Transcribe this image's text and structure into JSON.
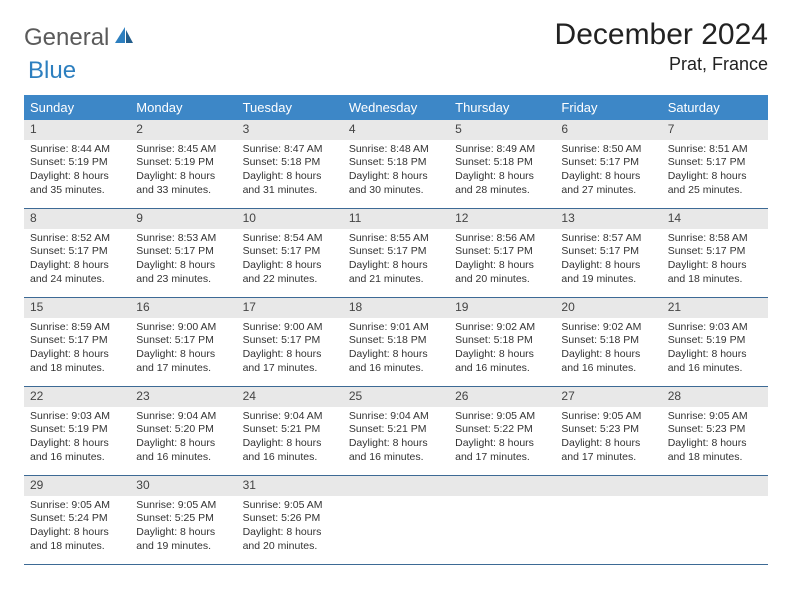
{
  "logo": {
    "text1": "General",
    "text2": "Blue"
  },
  "title": "December 2024",
  "location": "Prat, France",
  "colors": {
    "header_bg": "#3d87c7",
    "header_text": "#ffffff",
    "daynum_bg": "#e8e8e8",
    "row_border": "#3d6a95",
    "logo_gray": "#5a5a5a",
    "logo_blue": "#2d7fbf"
  },
  "weekdays": [
    "Sunday",
    "Monday",
    "Tuesday",
    "Wednesday",
    "Thursday",
    "Friday",
    "Saturday"
  ],
  "weeks": [
    [
      {
        "n": "1",
        "sunrise": "Sunrise: 8:44 AM",
        "sunset": "Sunset: 5:19 PM",
        "d1": "Daylight: 8 hours",
        "d2": "and 35 minutes."
      },
      {
        "n": "2",
        "sunrise": "Sunrise: 8:45 AM",
        "sunset": "Sunset: 5:19 PM",
        "d1": "Daylight: 8 hours",
        "d2": "and 33 minutes."
      },
      {
        "n": "3",
        "sunrise": "Sunrise: 8:47 AM",
        "sunset": "Sunset: 5:18 PM",
        "d1": "Daylight: 8 hours",
        "d2": "and 31 minutes."
      },
      {
        "n": "4",
        "sunrise": "Sunrise: 8:48 AM",
        "sunset": "Sunset: 5:18 PM",
        "d1": "Daylight: 8 hours",
        "d2": "and 30 minutes."
      },
      {
        "n": "5",
        "sunrise": "Sunrise: 8:49 AM",
        "sunset": "Sunset: 5:18 PM",
        "d1": "Daylight: 8 hours",
        "d2": "and 28 minutes."
      },
      {
        "n": "6",
        "sunrise": "Sunrise: 8:50 AM",
        "sunset": "Sunset: 5:17 PM",
        "d1": "Daylight: 8 hours",
        "d2": "and 27 minutes."
      },
      {
        "n": "7",
        "sunrise": "Sunrise: 8:51 AM",
        "sunset": "Sunset: 5:17 PM",
        "d1": "Daylight: 8 hours",
        "d2": "and 25 minutes."
      }
    ],
    [
      {
        "n": "8",
        "sunrise": "Sunrise: 8:52 AM",
        "sunset": "Sunset: 5:17 PM",
        "d1": "Daylight: 8 hours",
        "d2": "and 24 minutes."
      },
      {
        "n": "9",
        "sunrise": "Sunrise: 8:53 AM",
        "sunset": "Sunset: 5:17 PM",
        "d1": "Daylight: 8 hours",
        "d2": "and 23 minutes."
      },
      {
        "n": "10",
        "sunrise": "Sunrise: 8:54 AM",
        "sunset": "Sunset: 5:17 PM",
        "d1": "Daylight: 8 hours",
        "d2": "and 22 minutes."
      },
      {
        "n": "11",
        "sunrise": "Sunrise: 8:55 AM",
        "sunset": "Sunset: 5:17 PM",
        "d1": "Daylight: 8 hours",
        "d2": "and 21 minutes."
      },
      {
        "n": "12",
        "sunrise": "Sunrise: 8:56 AM",
        "sunset": "Sunset: 5:17 PM",
        "d1": "Daylight: 8 hours",
        "d2": "and 20 minutes."
      },
      {
        "n": "13",
        "sunrise": "Sunrise: 8:57 AM",
        "sunset": "Sunset: 5:17 PM",
        "d1": "Daylight: 8 hours",
        "d2": "and 19 minutes."
      },
      {
        "n": "14",
        "sunrise": "Sunrise: 8:58 AM",
        "sunset": "Sunset: 5:17 PM",
        "d1": "Daylight: 8 hours",
        "d2": "and 18 minutes."
      }
    ],
    [
      {
        "n": "15",
        "sunrise": "Sunrise: 8:59 AM",
        "sunset": "Sunset: 5:17 PM",
        "d1": "Daylight: 8 hours",
        "d2": "and 18 minutes."
      },
      {
        "n": "16",
        "sunrise": "Sunrise: 9:00 AM",
        "sunset": "Sunset: 5:17 PM",
        "d1": "Daylight: 8 hours",
        "d2": "and 17 minutes."
      },
      {
        "n": "17",
        "sunrise": "Sunrise: 9:00 AM",
        "sunset": "Sunset: 5:17 PM",
        "d1": "Daylight: 8 hours",
        "d2": "and 17 minutes."
      },
      {
        "n": "18",
        "sunrise": "Sunrise: 9:01 AM",
        "sunset": "Sunset: 5:18 PM",
        "d1": "Daylight: 8 hours",
        "d2": "and 16 minutes."
      },
      {
        "n": "19",
        "sunrise": "Sunrise: 9:02 AM",
        "sunset": "Sunset: 5:18 PM",
        "d1": "Daylight: 8 hours",
        "d2": "and 16 minutes."
      },
      {
        "n": "20",
        "sunrise": "Sunrise: 9:02 AM",
        "sunset": "Sunset: 5:18 PM",
        "d1": "Daylight: 8 hours",
        "d2": "and 16 minutes."
      },
      {
        "n": "21",
        "sunrise": "Sunrise: 9:03 AM",
        "sunset": "Sunset: 5:19 PM",
        "d1": "Daylight: 8 hours",
        "d2": "and 16 minutes."
      }
    ],
    [
      {
        "n": "22",
        "sunrise": "Sunrise: 9:03 AM",
        "sunset": "Sunset: 5:19 PM",
        "d1": "Daylight: 8 hours",
        "d2": "and 16 minutes."
      },
      {
        "n": "23",
        "sunrise": "Sunrise: 9:04 AM",
        "sunset": "Sunset: 5:20 PM",
        "d1": "Daylight: 8 hours",
        "d2": "and 16 minutes."
      },
      {
        "n": "24",
        "sunrise": "Sunrise: 9:04 AM",
        "sunset": "Sunset: 5:21 PM",
        "d1": "Daylight: 8 hours",
        "d2": "and 16 minutes."
      },
      {
        "n": "25",
        "sunrise": "Sunrise: 9:04 AM",
        "sunset": "Sunset: 5:21 PM",
        "d1": "Daylight: 8 hours",
        "d2": "and 16 minutes."
      },
      {
        "n": "26",
        "sunrise": "Sunrise: 9:05 AM",
        "sunset": "Sunset: 5:22 PM",
        "d1": "Daylight: 8 hours",
        "d2": "and 17 minutes."
      },
      {
        "n": "27",
        "sunrise": "Sunrise: 9:05 AM",
        "sunset": "Sunset: 5:23 PM",
        "d1": "Daylight: 8 hours",
        "d2": "and 17 minutes."
      },
      {
        "n": "28",
        "sunrise": "Sunrise: 9:05 AM",
        "sunset": "Sunset: 5:23 PM",
        "d1": "Daylight: 8 hours",
        "d2": "and 18 minutes."
      }
    ],
    [
      {
        "n": "29",
        "sunrise": "Sunrise: 9:05 AM",
        "sunset": "Sunset: 5:24 PM",
        "d1": "Daylight: 8 hours",
        "d2": "and 18 minutes."
      },
      {
        "n": "30",
        "sunrise": "Sunrise: 9:05 AM",
        "sunset": "Sunset: 5:25 PM",
        "d1": "Daylight: 8 hours",
        "d2": "and 19 minutes."
      },
      {
        "n": "31",
        "sunrise": "Sunrise: 9:05 AM",
        "sunset": "Sunset: 5:26 PM",
        "d1": "Daylight: 8 hours",
        "d2": "and 20 minutes."
      },
      {
        "n": "",
        "empty": true
      },
      {
        "n": "",
        "empty": true
      },
      {
        "n": "",
        "empty": true
      },
      {
        "n": "",
        "empty": true
      }
    ]
  ]
}
